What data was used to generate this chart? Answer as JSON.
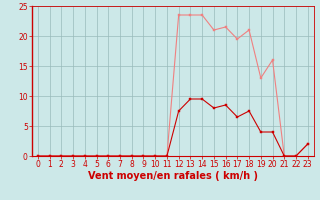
{
  "x": [
    0,
    1,
    2,
    3,
    4,
    5,
    6,
    7,
    8,
    9,
    10,
    11,
    12,
    13,
    14,
    15,
    16,
    17,
    18,
    19,
    20,
    21,
    22,
    23
  ],
  "rafales": [
    0,
    0,
    0,
    0,
    0,
    0,
    0,
    0,
    0,
    0,
    0,
    0,
    23.5,
    23.5,
    23.5,
    21.0,
    21.5,
    19.5,
    21.0,
    13.0,
    16.0,
    0.0,
    0.0,
    2.0
  ],
  "moyen": [
    0,
    0,
    0,
    0,
    0,
    0,
    0,
    0,
    0,
    0,
    0,
    0,
    7.5,
    9.5,
    9.5,
    8.0,
    8.5,
    6.5,
    7.5,
    4.0,
    4.0,
    0.0,
    0.0,
    2.0
  ],
  "color_rafales": "#f08080",
  "color_moyen": "#cc0000",
  "bg_color": "#cce8e8",
  "grid_color": "#99bbbb",
  "xlabel": "Vent moyen/en rafales ( km/h )",
  "ylim": [
    0,
    25
  ],
  "xlim": [
    -0.5,
    23.5
  ],
  "yticks": [
    0,
    5,
    10,
    15,
    20,
    25
  ],
  "xticks": [
    0,
    1,
    2,
    3,
    4,
    5,
    6,
    7,
    8,
    9,
    10,
    11,
    12,
    13,
    14,
    15,
    16,
    17,
    18,
    19,
    20,
    21,
    22,
    23
  ],
  "tick_fontsize": 5.5,
  "xlabel_fontsize": 7.0,
  "linewidth": 0.8,
  "markersize": 2.0
}
